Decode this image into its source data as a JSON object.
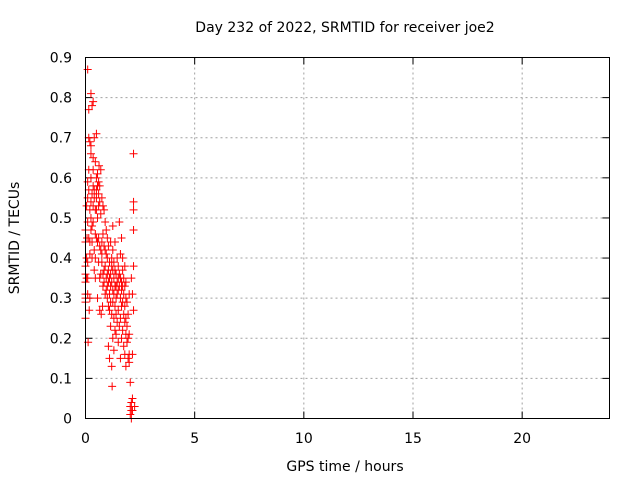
{
  "chart_data": {
    "type": "scatter",
    "title": "Day 232 of 2022, SRMTID for receiver joe2",
    "xlabel": "GPS time / hours",
    "ylabel": "SRMTID / TECUs",
    "xlim": [
      0,
      24
    ],
    "ylim": [
      0,
      0.9
    ],
    "grid": true,
    "marker": "+",
    "x_ticks": [
      {
        "value": 0,
        "label": "0"
      },
      {
        "value": 5,
        "label": "5"
      },
      {
        "value": 10,
        "label": "10"
      },
      {
        "value": 15,
        "label": "15"
      },
      {
        "value": 20,
        "label": "20"
      }
    ],
    "y_ticks": [
      {
        "value": 0,
        "label": "0"
      },
      {
        "value": 0.1,
        "label": "0.1"
      },
      {
        "value": 0.2,
        "label": "0.2"
      },
      {
        "value": 0.3,
        "label": "0.3"
      },
      {
        "value": 0.4,
        "label": "0.4"
      },
      {
        "value": 0.5,
        "label": "0.5"
      },
      {
        "value": 0.6,
        "label": "0.6"
      },
      {
        "value": 0.7,
        "label": "0.7"
      },
      {
        "value": 0.8,
        "label": "0.8"
      },
      {
        "value": 0.9,
        "label": "0.9"
      }
    ],
    "series": [
      {
        "name": "joe2",
        "color": "#ff0000",
        "points": [
          [
            0.0,
            0.47
          ],
          [
            0.0,
            0.44
          ],
          [
            0.0,
            0.38
          ],
          [
            0.0,
            0.36
          ],
          [
            0.0,
            0.34
          ],
          [
            0.0,
            0.31
          ],
          [
            0.0,
            0.3
          ],
          [
            0.0,
            0.29
          ],
          [
            0.0,
            0.25
          ],
          [
            0.05,
            0.53
          ],
          [
            0.05,
            0.4
          ],
          [
            0.05,
            0.35
          ],
          [
            0.07,
            0.45
          ],
          [
            0.1,
            0.87
          ],
          [
            0.1,
            0.59
          ],
          [
            0.1,
            0.55
          ],
          [
            0.1,
            0.49
          ],
          [
            0.1,
            0.39
          ],
          [
            0.1,
            0.35
          ],
          [
            0.1,
            0.31
          ],
          [
            0.12,
            0.19
          ],
          [
            0.15,
            0.77
          ],
          [
            0.15,
            0.7
          ],
          [
            0.15,
            0.62
          ],
          [
            0.15,
            0.57
          ],
          [
            0.15,
            0.45
          ],
          [
            0.17,
            0.27
          ],
          [
            0.2,
            0.69
          ],
          [
            0.2,
            0.52
          ],
          [
            0.2,
            0.44
          ],
          [
            0.2,
            0.41
          ],
          [
            0.2,
            0.3
          ],
          [
            0.25,
            0.81
          ],
          [
            0.25,
            0.68
          ],
          [
            0.25,
            0.66
          ],
          [
            0.25,
            0.6
          ],
          [
            0.25,
            0.54
          ],
          [
            0.25,
            0.5
          ],
          [
            0.25,
            0.47
          ],
          [
            0.3,
            0.78
          ],
          [
            0.3,
            0.56
          ],
          [
            0.3,
            0.48
          ],
          [
            0.3,
            0.44
          ],
          [
            0.3,
            0.4
          ],
          [
            0.35,
            0.79
          ],
          [
            0.35,
            0.65
          ],
          [
            0.35,
            0.62
          ],
          [
            0.35,
            0.58
          ],
          [
            0.35,
            0.53
          ],
          [
            0.35,
            0.49
          ],
          [
            0.4,
            0.7
          ],
          [
            0.4,
            0.57
          ],
          [
            0.4,
            0.55
          ],
          [
            0.4,
            0.42
          ],
          [
            0.4,
            0.37
          ],
          [
            0.45,
            0.64
          ],
          [
            0.45,
            0.52
          ],
          [
            0.45,
            0.46
          ],
          [
            0.45,
            0.4
          ],
          [
            0.45,
            0.35
          ],
          [
            0.5,
            0.71
          ],
          [
            0.5,
            0.6
          ],
          [
            0.5,
            0.57
          ],
          [
            0.5,
            0.55
          ],
          [
            0.5,
            0.52
          ],
          [
            0.5,
            0.45
          ],
          [
            0.55,
            0.61
          ],
          [
            0.55,
            0.58
          ],
          [
            0.55,
            0.5
          ],
          [
            0.55,
            0.44
          ],
          [
            0.55,
            0.3
          ],
          [
            0.6,
            0.59
          ],
          [
            0.6,
            0.56
          ],
          [
            0.6,
            0.53
          ],
          [
            0.6,
            0.45
          ],
          [
            0.6,
            0.39
          ],
          [
            0.62,
            0.63
          ],
          [
            0.65,
            0.58
          ],
          [
            0.65,
            0.54
          ],
          [
            0.65,
            0.43
          ],
          [
            0.65,
            0.35
          ],
          [
            0.65,
            0.27
          ],
          [
            0.7,
            0.62
          ],
          [
            0.7,
            0.51
          ],
          [
            0.7,
            0.42
          ],
          [
            0.7,
            0.36
          ],
          [
            0.72,
            0.26
          ],
          [
            0.75,
            0.55
          ],
          [
            0.75,
            0.44
          ],
          [
            0.75,
            0.41
          ],
          [
            0.75,
            0.39
          ],
          [
            0.78,
            0.28
          ],
          [
            0.8,
            0.53
          ],
          [
            0.8,
            0.46
          ],
          [
            0.8,
            0.36
          ],
          [
            0.8,
            0.33
          ],
          [
            0.85,
            0.52
          ],
          [
            0.85,
            0.43
          ],
          [
            0.85,
            0.37
          ],
          [
            0.85,
            0.34
          ],
          [
            0.9,
            0.49
          ],
          [
            0.9,
            0.42
          ],
          [
            0.9,
            0.38
          ],
          [
            0.9,
            0.31
          ],
          [
            0.95,
            0.47
          ],
          [
            0.95,
            0.41
          ],
          [
            0.95,
            0.35
          ],
          [
            0.95,
            0.32
          ],
          [
            1.0,
            0.45
          ],
          [
            1.0,
            0.4
          ],
          [
            1.0,
            0.36
          ],
          [
            1.0,
            0.33
          ],
          [
            1.0,
            0.3
          ],
          [
            1.05,
            0.43
          ],
          [
            1.05,
            0.37
          ],
          [
            1.05,
            0.34
          ],
          [
            1.05,
            0.28
          ],
          [
            1.05,
            0.18
          ],
          [
            1.1,
            0.39
          ],
          [
            1.1,
            0.35
          ],
          [
            1.1,
            0.31
          ],
          [
            1.1,
            0.27
          ],
          [
            1.1,
            0.15
          ],
          [
            1.15,
            0.44
          ],
          [
            1.15,
            0.36
          ],
          [
            1.15,
            0.33
          ],
          [
            1.15,
            0.29
          ],
          [
            1.15,
            0.23
          ],
          [
            1.2,
            0.4
          ],
          [
            1.2,
            0.38
          ],
          [
            1.2,
            0.34
          ],
          [
            1.2,
            0.26
          ],
          [
            1.2,
            0.13
          ],
          [
            1.22,
            0.08
          ],
          [
            1.25,
            0.48
          ],
          [
            1.25,
            0.42
          ],
          [
            1.25,
            0.37
          ],
          [
            1.25,
            0.32
          ],
          [
            1.25,
            0.29
          ],
          [
            1.25,
            0.2
          ],
          [
            1.3,
            0.39
          ],
          [
            1.3,
            0.35
          ],
          [
            1.3,
            0.31
          ],
          [
            1.3,
            0.25
          ],
          [
            1.3,
            0.17
          ],
          [
            1.35,
            0.44
          ],
          [
            1.35,
            0.37
          ],
          [
            1.35,
            0.33
          ],
          [
            1.35,
            0.28
          ],
          [
            1.35,
            0.22
          ],
          [
            1.4,
            0.36
          ],
          [
            1.4,
            0.33
          ],
          [
            1.4,
            0.3
          ],
          [
            1.4,
            0.26
          ],
          [
            1.4,
            0.21
          ],
          [
            1.45,
            0.4
          ],
          [
            1.45,
            0.34
          ],
          [
            1.45,
            0.31
          ],
          [
            1.45,
            0.24
          ],
          [
            1.5,
            0.38
          ],
          [
            1.5,
            0.35
          ],
          [
            1.5,
            0.32
          ],
          [
            1.5,
            0.27
          ],
          [
            1.5,
            0.19
          ],
          [
            1.55,
            0.49
          ],
          [
            1.55,
            0.36
          ],
          [
            1.55,
            0.33
          ],
          [
            1.55,
            0.23
          ],
          [
            1.6,
            0.41
          ],
          [
            1.6,
            0.35
          ],
          [
            1.6,
            0.3
          ],
          [
            1.6,
            0.25
          ],
          [
            1.6,
            0.15
          ],
          [
            1.65,
            0.45
          ],
          [
            1.65,
            0.34
          ],
          [
            1.65,
            0.32
          ],
          [
            1.65,
            0.28
          ],
          [
            1.65,
            0.2
          ],
          [
            1.7,
            0.4
          ],
          [
            1.7,
            0.37
          ],
          [
            1.7,
            0.33
          ],
          [
            1.7,
            0.29
          ],
          [
            1.7,
            0.22
          ],
          [
            1.75,
            0.35
          ],
          [
            1.75,
            0.31
          ],
          [
            1.75,
            0.26
          ],
          [
            1.75,
            0.18
          ],
          [
            1.8,
            0.38
          ],
          [
            1.8,
            0.33
          ],
          [
            1.8,
            0.28
          ],
          [
            1.8,
            0.24
          ],
          [
            1.8,
            0.16
          ],
          [
            1.85,
            0.34
          ],
          [
            1.85,
            0.3
          ],
          [
            1.85,
            0.25
          ],
          [
            1.85,
            0.21
          ],
          [
            1.85,
            0.13
          ],
          [
            1.9,
            0.29
          ],
          [
            1.9,
            0.23
          ],
          [
            1.9,
            0.19
          ],
          [
            1.95,
            0.26
          ],
          [
            1.95,
            0.2
          ],
          [
            1.95,
            0.15
          ],
          [
            2.0,
            0.31
          ],
          [
            2.0,
            0.21
          ],
          [
            2.0,
            0.16
          ],
          [
            2.0,
            0.14
          ],
          [
            2.05,
            0.09
          ],
          [
            2.05,
            0.03
          ],
          [
            2.05,
            0.01
          ],
          [
            2.1,
            0.04
          ],
          [
            2.1,
            0.02
          ],
          [
            2.1,
            0.0
          ],
          [
            2.1,
            0.35
          ],
          [
            2.15,
            0.31
          ],
          [
            2.15,
            0.16
          ],
          [
            2.15,
            0.05
          ],
          [
            2.15,
            0.02
          ],
          [
            2.2,
            0.66
          ],
          [
            2.2,
            0.54
          ],
          [
            2.2,
            0.52
          ],
          [
            2.2,
            0.47
          ],
          [
            2.2,
            0.38
          ],
          [
            2.2,
            0.27
          ],
          [
            2.25,
            0.03
          ]
        ]
      }
    ]
  }
}
